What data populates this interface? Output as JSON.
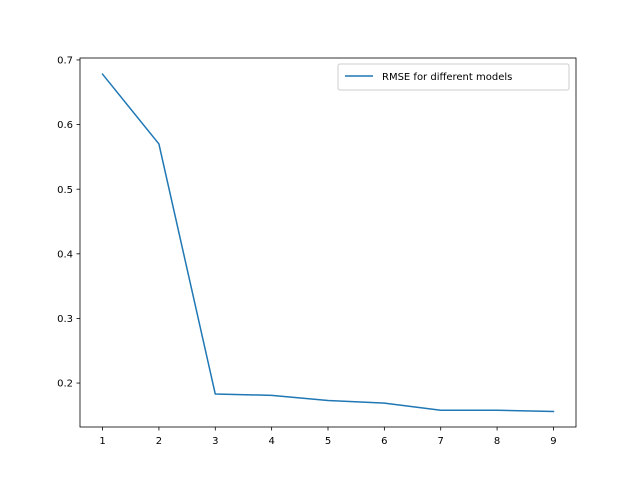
{
  "chart_data": {
    "type": "line",
    "title": "",
    "xlabel": "",
    "ylabel": "",
    "x": [
      1,
      2,
      3,
      4,
      5,
      6,
      7,
      8,
      9
    ],
    "series": [
      {
        "name": "RMSE for different models",
        "color": "#1f77b4",
        "values": [
          0.678,
          0.57,
          0.183,
          0.181,
          0.173,
          0.169,
          0.158,
          0.158,
          0.156
        ]
      }
    ],
    "xlim": [
      0.6,
      9.4
    ],
    "ylim": [
      0.132,
      0.703
    ],
    "xticks": [
      1,
      2,
      3,
      4,
      5,
      6,
      7,
      8,
      9
    ],
    "yticks": [
      0.2,
      0.3,
      0.4,
      0.5,
      0.6,
      0.7
    ],
    "ytick_labels": [
      "0.2",
      "0.3",
      "0.4",
      "0.5",
      "0.6",
      "0.7"
    ],
    "grid": false,
    "legend_position": "top-right"
  }
}
